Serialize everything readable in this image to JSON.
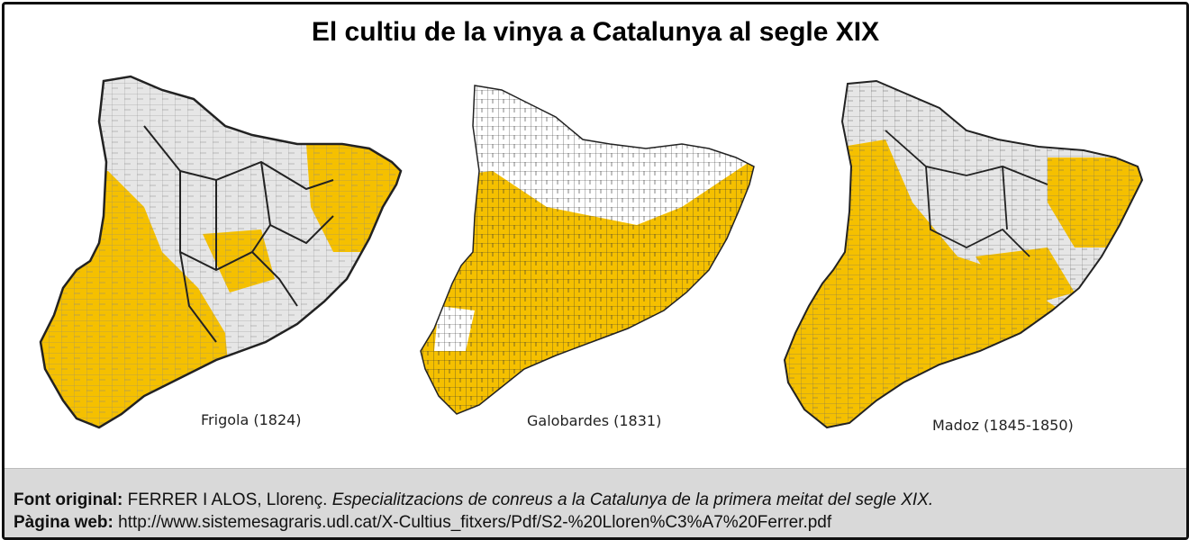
{
  "title": "El cultiu de la vinya a Catalunya al segle XIX",
  "colors": {
    "vineyard": "#F5C000",
    "no_data": "#FFFFFF",
    "unmarked": "#E6E6E6",
    "border": "#222222"
  },
  "maps": [
    {
      "label": "Frigola  (1824)"
    },
    {
      "label": "Galobardes (1831)"
    },
    {
      "label": "Madoz (1845-1850)"
    }
  ],
  "footer": {
    "source_label": "Font original:",
    "source_author": "FERRER I ALOS, Llorenç.",
    "source_title": "Especialitzacions de conreus a la Catalunya de la primera meitat del segle XIX.",
    "web_label": "Pàgina web:",
    "web_url": "http://www.sistemesagraris.udl.cat/X-Cultius_fitxers/Pdf/S2-%20Lloren%C3%A7%20Ferrer.pdf"
  }
}
